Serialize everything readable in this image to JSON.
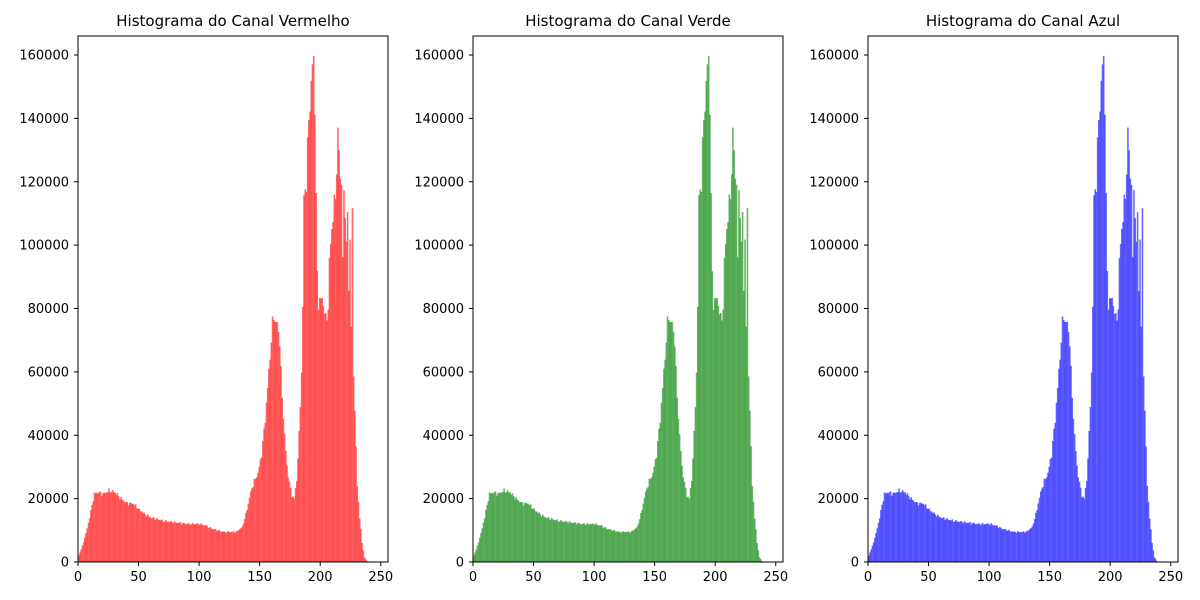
{
  "chart_data": [
    {
      "type": "bar",
      "title": "Histograma do Canal Vermelho",
      "xlabel": "",
      "ylabel": "",
      "color": "#ff0000",
      "alpha": 0.6,
      "xlim": [
        0,
        256
      ],
      "ylim": [
        0,
        166000
      ],
      "x_ticks": [
        "0",
        "50",
        "100",
        "150",
        "200",
        "250"
      ],
      "y_ticks": [
        "0",
        "20000",
        "40000",
        "60000",
        "80000",
        "100000",
        "120000",
        "140000",
        "160000"
      ],
      "control_points": {
        "x": [
          0,
          3,
          6,
          9,
          11,
          13,
          16,
          20,
          25,
          30,
          35,
          40,
          45,
          50,
          55,
          60,
          70,
          80,
          90,
          100,
          105,
          110,
          120,
          130,
          135,
          138,
          142,
          145,
          148,
          151,
          154,
          156,
          158,
          160,
          161,
          162,
          164,
          166,
          167,
          168,
          170,
          172,
          174,
          176,
          178,
          180,
          182,
          184,
          185,
          186,
          188,
          190,
          192,
          193,
          194,
          195,
          196,
          197,
          198,
          200,
          202,
          204,
          206,
          207,
          208,
          210,
          212,
          213,
          214,
          215,
          216,
          217,
          218,
          219,
          220,
          221,
          222,
          223,
          224,
          225,
          226,
          227,
          228,
          229,
          230,
          232,
          234,
          236,
          238,
          240,
          255
        ],
        "y": [
          2000,
          5000,
          9000,
          14000,
          18000,
          21500,
          22000,
          21500,
          22500,
          22000,
          20000,
          18500,
          18500,
          16500,
          15000,
          14000,
          13000,
          12500,
          12000,
          12000,
          11500,
          10500,
          9500,
          9500,
          11000,
          15000,
          22000,
          25500,
          28000,
          34000,
          45000,
          55000,
          65000,
          75000,
          78000,
          76000,
          75000,
          70000,
          60000,
          52000,
          40000,
          30000,
          25000,
          21000,
          20000,
          26000,
          40000,
          60000,
          80000,
          115000,
          120000,
          140000,
          150000,
          157000,
          158000,
          145000,
          115000,
          90000,
          82000,
          83000,
          82000,
          76000,
          80000,
          95000,
          100000,
          110000,
          115000,
          125000,
          135000,
          130000,
          120000,
          122000,
          95000,
          115000,
          112000,
          100000,
          110000,
          85000,
          103000,
          75000,
          108000,
          60000,
          48000,
          36000,
          24000,
          14000,
          6000,
          1500,
          300,
          0,
          0
        ]
      }
    },
    {
      "type": "bar",
      "title": "Histograma do Canal Verde",
      "xlabel": "",
      "ylabel": "",
      "color": "#008000",
      "alpha": 0.6,
      "xlim": [
        0,
        256
      ],
      "ylim": [
        0,
        166000
      ],
      "x_ticks": [
        "0",
        "50",
        "100",
        "150",
        "200",
        "250"
      ],
      "y_ticks": [
        "0",
        "20000",
        "40000",
        "60000",
        "80000",
        "100000",
        "120000",
        "140000",
        "160000"
      ],
      "control_points": {
        "x": [
          0,
          3,
          6,
          9,
          11,
          13,
          16,
          20,
          25,
          30,
          35,
          40,
          45,
          50,
          55,
          60,
          70,
          80,
          90,
          100,
          105,
          110,
          120,
          130,
          135,
          138,
          142,
          145,
          148,
          151,
          154,
          156,
          158,
          160,
          161,
          162,
          164,
          166,
          167,
          168,
          170,
          172,
          174,
          176,
          178,
          180,
          182,
          184,
          185,
          186,
          188,
          190,
          192,
          193,
          194,
          195,
          196,
          197,
          198,
          200,
          202,
          204,
          206,
          207,
          208,
          210,
          212,
          213,
          214,
          215,
          216,
          217,
          218,
          219,
          220,
          221,
          222,
          223,
          224,
          225,
          226,
          227,
          228,
          229,
          230,
          232,
          234,
          236,
          238,
          240,
          255
        ],
        "y": [
          2000,
          5000,
          9000,
          14000,
          18000,
          21500,
          22000,
          21500,
          22500,
          22000,
          20000,
          18500,
          18500,
          16500,
          15000,
          14000,
          13000,
          12500,
          12000,
          12000,
          11500,
          10500,
          9500,
          9500,
          11000,
          15000,
          22000,
          25500,
          28000,
          34000,
          45000,
          55000,
          65000,
          75000,
          78000,
          76000,
          75000,
          70000,
          60000,
          52000,
          40000,
          30000,
          25000,
          21000,
          20000,
          26000,
          40000,
          60000,
          80000,
          115000,
          120000,
          140000,
          150000,
          157000,
          158000,
          145000,
          115000,
          90000,
          82000,
          83000,
          82000,
          76000,
          80000,
          95000,
          100000,
          110000,
          115000,
          125000,
          135000,
          130000,
          120000,
          122000,
          95000,
          115000,
          112000,
          100000,
          110000,
          85000,
          103000,
          75000,
          108000,
          60000,
          48000,
          36000,
          24000,
          14000,
          6000,
          1500,
          300,
          0,
          0
        ]
      }
    },
    {
      "type": "bar",
      "title": "Histograma do Canal Azul",
      "xlabel": "",
      "ylabel": "",
      "color": "#0000ff",
      "alpha": 0.6,
      "xlim": [
        0,
        256
      ],
      "ylim": [
        0,
        166000
      ],
      "x_ticks": [
        "0",
        "50",
        "100",
        "150",
        "200",
        "250"
      ],
      "y_ticks": [
        "0",
        "20000",
        "40000",
        "60000",
        "80000",
        "100000",
        "120000",
        "140000",
        "160000"
      ],
      "control_points": {
        "x": [
          0,
          3,
          6,
          9,
          11,
          13,
          16,
          20,
          25,
          30,
          35,
          40,
          45,
          50,
          55,
          60,
          70,
          80,
          90,
          100,
          105,
          110,
          120,
          130,
          135,
          138,
          142,
          145,
          148,
          151,
          154,
          156,
          158,
          160,
          161,
          162,
          164,
          166,
          167,
          168,
          170,
          172,
          174,
          176,
          178,
          180,
          182,
          184,
          185,
          186,
          188,
          190,
          192,
          193,
          194,
          195,
          196,
          197,
          198,
          200,
          202,
          204,
          206,
          207,
          208,
          210,
          212,
          213,
          214,
          215,
          216,
          217,
          218,
          219,
          220,
          221,
          222,
          223,
          224,
          225,
          226,
          227,
          228,
          229,
          230,
          232,
          234,
          236,
          238,
          240,
          255
        ],
        "y": [
          2000,
          5000,
          9000,
          14000,
          18000,
          21500,
          22000,
          21500,
          22500,
          22000,
          20000,
          18500,
          18500,
          16500,
          15000,
          14000,
          13000,
          12500,
          12000,
          12000,
          11500,
          10500,
          9500,
          9500,
          11000,
          15000,
          22000,
          25500,
          28000,
          34000,
          45000,
          55000,
          65000,
          75000,
          78000,
          76000,
          75000,
          70000,
          60000,
          52000,
          40000,
          30000,
          25000,
          21000,
          20000,
          26000,
          40000,
          60000,
          80000,
          115000,
          120000,
          140000,
          150000,
          157000,
          158000,
          145000,
          115000,
          90000,
          82000,
          83000,
          82000,
          76000,
          80000,
          95000,
          100000,
          110000,
          115000,
          125000,
          135000,
          130000,
          120000,
          122000,
          95000,
          115000,
          112000,
          100000,
          110000,
          85000,
          103000,
          75000,
          108000,
          60000,
          48000,
          36000,
          24000,
          14000,
          6000,
          1500,
          300,
          0,
          0
        ]
      }
    }
  ]
}
